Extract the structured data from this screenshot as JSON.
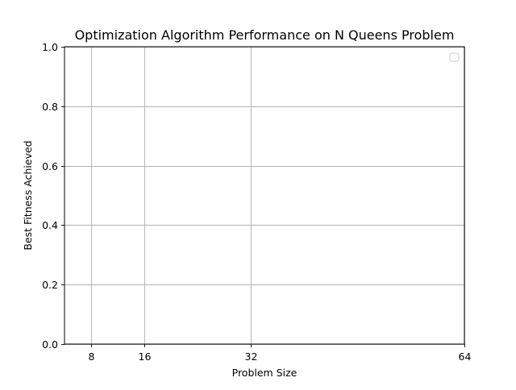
{
  "chart_data": {
    "type": "line",
    "title": "Optimization Algorithm Performance on N Queens Problem",
    "xlabel": "Problem Size",
    "ylabel": "Best Fitness Achieved",
    "xlim": [
      4,
      64
    ],
    "ylim": [
      0.0,
      1.0
    ],
    "xticks": [
      8,
      16,
      32,
      64
    ],
    "xtick_labels": [
      "8",
      "16",
      "32",
      "64"
    ],
    "yticks": [
      0.0,
      0.2,
      0.4,
      0.6,
      0.8,
      1.0
    ],
    "ytick_labels": [
      "0.0",
      "0.2",
      "0.4",
      "0.6",
      "0.8",
      "1.0"
    ],
    "grid": true,
    "legend": {
      "placement": "top-right",
      "entries": []
    },
    "series": []
  }
}
